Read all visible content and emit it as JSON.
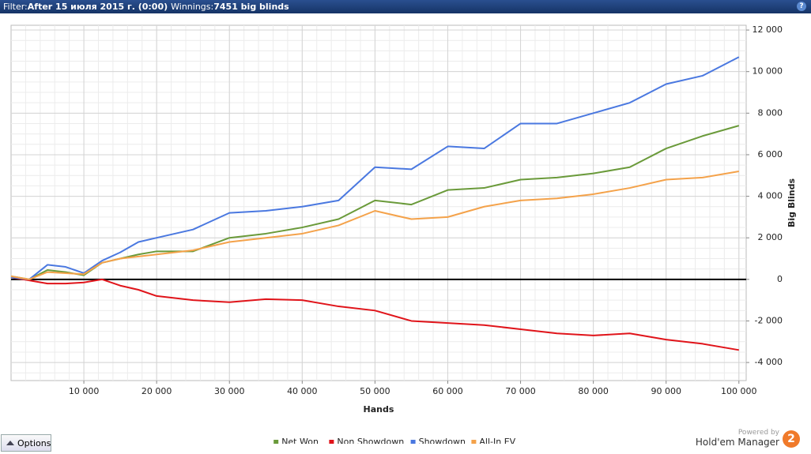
{
  "header": {
    "filter_label": "Filter:",
    "filter_value": "After 15 июля 2015 г. (0:00)",
    "winnings_label": "Winnings:",
    "winnings_value": "7451 big blinds",
    "help": "?"
  },
  "chart_data": {
    "type": "line",
    "x_label": "Hands",
    "y_label": "Big Blinds",
    "x": [
      0,
      2500,
      5000,
      7500,
      10000,
      12500,
      15000,
      17500,
      20000,
      25000,
      30000,
      35000,
      40000,
      45000,
      50000,
      55000,
      60000,
      65000,
      70000,
      75000,
      80000,
      85000,
      90000,
      95000,
      100000
    ],
    "series": [
      {
        "name": "Net Won",
        "color": "#6a9a3a",
        "values": [
          150,
          0,
          450,
          350,
          200,
          800,
          1000,
          1200,
          1350,
          1350,
          2000,
          2200,
          2500,
          2900,
          3800,
          3600,
          4300,
          4400,
          4800,
          4900,
          5100,
          5400,
          6300,
          6900,
          7400
        ]
      },
      {
        "name": "Non Showdown",
        "color": "#e0141a",
        "values": [
          100,
          -50,
          -200,
          -200,
          -150,
          0,
          -300,
          -500,
          -800,
          -1000,
          -1100,
          -950,
          -1000,
          -1300,
          -1500,
          -2000,
          -2100,
          -2200,
          -2400,
          -2600,
          -2700,
          -2600,
          -2900,
          -3100,
          -3400
        ]
      },
      {
        "name": "Showdown",
        "color": "#4a78e0",
        "values": [
          100,
          0,
          700,
          600,
          300,
          900,
          1300,
          1800,
          2000,
          2400,
          3200,
          3300,
          3500,
          3800,
          5400,
          5300,
          6400,
          6300,
          7500,
          7500,
          8000,
          8500,
          9400,
          9800,
          10700
        ]
      },
      {
        "name": "All-In EV",
        "color": "#f4a24a",
        "values": [
          150,
          0,
          350,
          300,
          250,
          800,
          1000,
          1100,
          1200,
          1400,
          1800,
          2000,
          2200,
          2600,
          3300,
          2900,
          3000,
          3500,
          3800,
          3900,
          4100,
          4400,
          4800,
          4900,
          5200
        ]
      }
    ],
    "xlim": [
      0,
      101000
    ],
    "ylim": [
      -4870,
      12230
    ],
    "xticks": [
      {
        "value": 10000,
        "label": "10 000"
      },
      {
        "value": 20000,
        "label": "20 000"
      },
      {
        "value": 30000,
        "label": "30 000"
      },
      {
        "value": 40000,
        "label": "40 000"
      },
      {
        "value": 50000,
        "label": "50 000"
      },
      {
        "value": 60000,
        "label": "60 000"
      },
      {
        "value": 70000,
        "label": "70 000"
      },
      {
        "value": 80000,
        "label": "80 000"
      },
      {
        "value": 90000,
        "label": "90 000"
      },
      {
        "value": 100000,
        "label": "100 000"
      }
    ],
    "yticks": [
      {
        "value": -4000,
        "label": "-4 000"
      },
      {
        "value": -2000,
        "label": "-2 000"
      },
      0,
      {
        "value": 2000,
        "label": "2 000"
      },
      {
        "value": 4000,
        "label": "4 000"
      },
      {
        "value": 6000,
        "label": "6 000"
      },
      {
        "value": 8000,
        "label": "8 000"
      },
      {
        "value": 10000,
        "label": "10 000"
      },
      {
        "value": 12000,
        "label": "12 000"
      }
    ],
    "grid": true,
    "minor_grid": true,
    "zero_line": true,
    "legend": "bottom"
  },
  "footer": {
    "options": "Options",
    "powered_by": "Powered by",
    "brand": "Hold'em Manager",
    "brand_badge": "2"
  }
}
